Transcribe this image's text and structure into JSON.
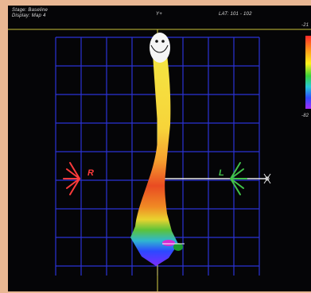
{
  "header": {
    "stage": "Stage: Baseline",
    "display": "Display: Map 4",
    "axis_top": "Y+",
    "lat": "LAT: 101 - 102"
  },
  "scale": {
    "max_label": "-21",
    "min_label": "-82",
    "colors": [
      "#ff2a2a",
      "#ff9a1a",
      "#fff21a",
      "#3ad23a",
      "#27c9d8",
      "#2d4cff",
      "#a52bff"
    ]
  },
  "markers": {
    "right": "R",
    "left": "L"
  },
  "colors": {
    "grid": "#2b33d6",
    "right_marker": "#ff3b3b",
    "left_marker": "#42c24a",
    "crosshair": "#e8e8e8",
    "axis_line": "#d8d046"
  }
}
